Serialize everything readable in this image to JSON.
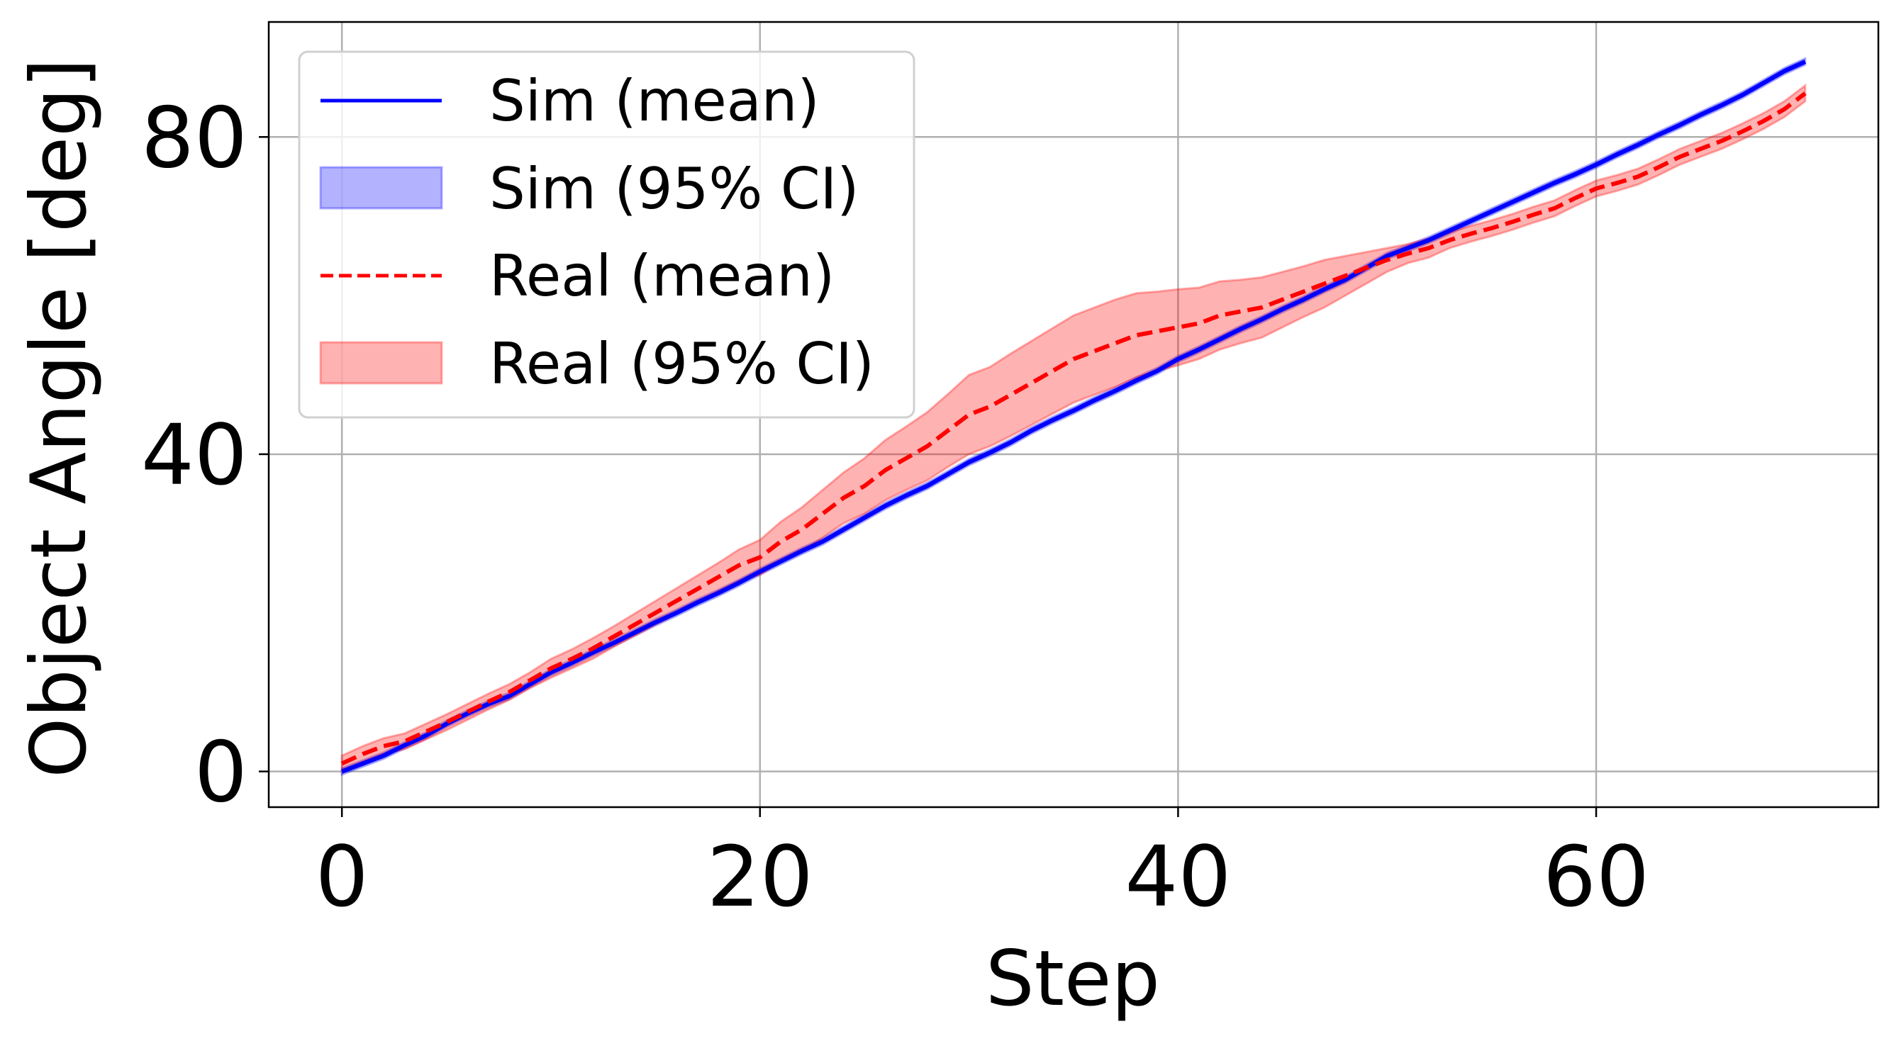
{
  "chart_data": {
    "type": "line",
    "title": "",
    "xlabel": "Step",
    "ylabel": "Object Angle [deg]",
    "xlim": [
      -3.5,
      73.5
    ],
    "ylim": [
      -4.5,
      94.5
    ],
    "xticks": [
      0,
      20,
      40,
      60
    ],
    "yticks": [
      0,
      40,
      80
    ],
    "grid": true,
    "legend_position": "top-left",
    "legend": [
      "Sim (mean)",
      "Sim (95% CI)",
      "Real (mean)",
      "Real (95% CI)"
    ],
    "x_start": 0,
    "series": [
      {
        "name": "Sim (mean)",
        "ci_name": "Sim (95% CI)",
        "color": "#0000ff",
        "fill": "#0000ff",
        "style": "solid",
        "mean": [
          0,
          1,
          2,
          3.3,
          4.5,
          6,
          7.3,
          8.5,
          9.5,
          11,
          12.5,
          13.7,
          15,
          16.2,
          17.5,
          18.8,
          20,
          21.3,
          22.5,
          23.8,
          25.2,
          26.5,
          27.8,
          29,
          30.5,
          32,
          33.5,
          34.8,
          36,
          37.5,
          39,
          40.2,
          41.5,
          43,
          44.3,
          45.5,
          46.8,
          48,
          49.3,
          50.5,
          52,
          53.2,
          54.5,
          55.8,
          57,
          58.3,
          59.5,
          60.8,
          62,
          63.5,
          65,
          66,
          67,
          68.2,
          69.4,
          70.6,
          71.8,
          73,
          74.2,
          75.3,
          76.5,
          77.8,
          79,
          80.3,
          81.5,
          82.8,
          84,
          85.3,
          86.8,
          88.3,
          89.5
        ],
        "ci_half_width": [
          0.4,
          0.4,
          0.4,
          0.4,
          0.4,
          0.4,
          0.4,
          0.4,
          0.4,
          0.4,
          0.4,
          0.4,
          0.4,
          0.4,
          0.4,
          0.4,
          0.4,
          0.4,
          0.4,
          0.4,
          0.4,
          0.4,
          0.4,
          0.4,
          0.4,
          0.4,
          0.4,
          0.4,
          0.4,
          0.4,
          0.4,
          0.4,
          0.4,
          0.4,
          0.4,
          0.4,
          0.4,
          0.4,
          0.4,
          0.4,
          0.4,
          0.4,
          0.4,
          0.4,
          0.4,
          0.4,
          0.4,
          0.4,
          0.4,
          0.4,
          0.4,
          0.4,
          0.4,
          0.4,
          0.4,
          0.4,
          0.4,
          0.4,
          0.4,
          0.4,
          0.4,
          0.4,
          0.4,
          0.4,
          0.4,
          0.4,
          0.4,
          0.4,
          0.4,
          0.4,
          0.4
        ]
      },
      {
        "name": "Real (mean)",
        "ci_name": "Real (95% CI)",
        "color": "#ff0000",
        "fill": "#ff0000",
        "style": "dashed",
        "mean": [
          1,
          2.2,
          3.2,
          3.8,
          5,
          6.2,
          7.5,
          8.8,
          10,
          11.5,
          13,
          14.2,
          15.5,
          17,
          18.5,
          20,
          21.5,
          23,
          24.5,
          26,
          27,
          29,
          30.5,
          32.5,
          34.5,
          36,
          38,
          39.5,
          41,
          43,
          45,
          46,
          47.5,
          49,
          50.5,
          52,
          53,
          54,
          55,
          55.5,
          56,
          56.5,
          57.5,
          58,
          58.5,
          59.5,
          60.5,
          61.5,
          62.5,
          63.5,
          64.5,
          65.3,
          66,
          67,
          67.8,
          68.5,
          69.3,
          70.2,
          71,
          72.3,
          73.5,
          74.2,
          75,
          76.2,
          77.5,
          78.5,
          79.5,
          80.7,
          82,
          83.5,
          85.5
        ],
        "ci_half_width": [
          1,
          1,
          1,
          1,
          1,
          1,
          1,
          1,
          1,
          1,
          1.2,
          1.2,
          1.3,
          1.3,
          1.4,
          1.5,
          1.6,
          1.7,
          1.8,
          2,
          2.2,
          2.5,
          2.8,
          3,
          3.2,
          3.5,
          3.8,
          4,
          4.3,
          4.6,
          5,
          5,
          5.2,
          5.3,
          5.4,
          5.5,
          5.5,
          5.5,
          5.3,
          5,
          4.8,
          4.5,
          4.3,
          4,
          3.8,
          3.5,
          3.2,
          3,
          2.5,
          2,
          1.5,
          1.2,
          1.2,
          1,
          1,
          1,
          1,
          1,
          1,
          1,
          1,
          1,
          1,
          1,
          1,
          1,
          1,
          1,
          1,
          1,
          1
        ]
      }
    ]
  }
}
